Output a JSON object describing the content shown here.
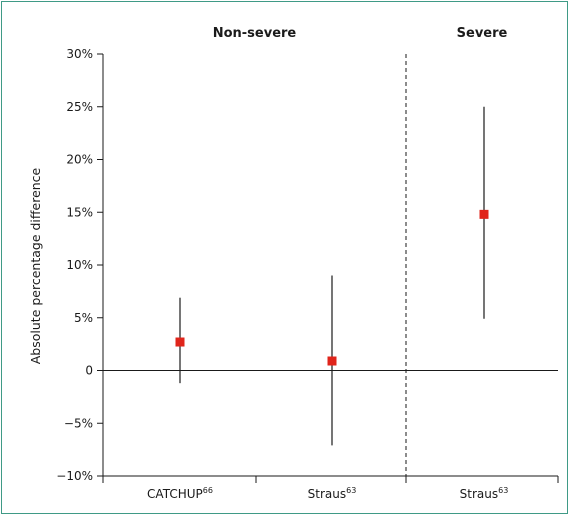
{
  "chart_data": {
    "type": "scatter",
    "title": "",
    "xlabel": "",
    "ylabel": "Absolute percentage difference",
    "ylim": [
      -10,
      30
    ],
    "yticks": [
      30,
      25,
      20,
      15,
      10,
      5,
      0,
      -5,
      -10
    ],
    "ytick_labels": [
      "30%",
      "25%",
      "20%",
      "15%",
      "10%",
      "5%",
      "0",
      "−5%",
      "−10%"
    ],
    "groups": [
      {
        "label": "Non-severe",
        "categories": [
          0,
          1
        ]
      },
      {
        "label": "Severe",
        "categories": [
          2
        ]
      }
    ],
    "categories": [
      {
        "name": "CATCHUP",
        "superscript": "66"
      },
      {
        "name": "Straus",
        "superscript": "63"
      },
      {
        "name": "Straus",
        "superscript": "63"
      }
    ],
    "points": [
      {
        "category": 0,
        "value": 2.7,
        "lower": -1.2,
        "upper": 6.9
      },
      {
        "category": 1,
        "value": 0.9,
        "lower": -7.1,
        "upper": 9.0
      },
      {
        "category": 2,
        "value": 14.8,
        "lower": 4.9,
        "upper": 25.0
      }
    ],
    "marker_color": "#e0251b",
    "divider_after_category": 1
  }
}
